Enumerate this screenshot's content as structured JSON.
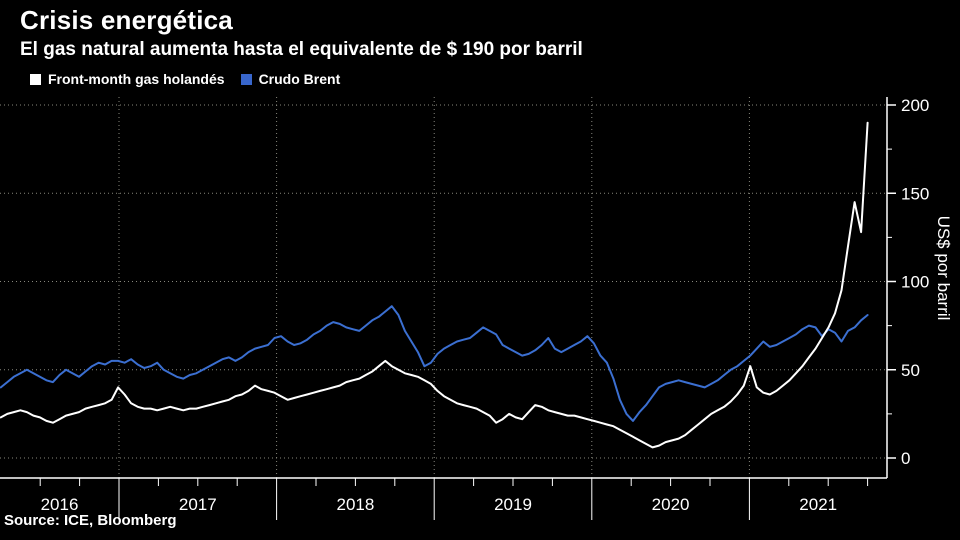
{
  "header": {
    "title": "Crisis energética",
    "subtitle": "El gas natural aumenta hasta el equivalente de $ 190 por barril"
  },
  "legend": {
    "items": [
      {
        "id": "gas",
        "label": "Front-month gas holandés",
        "color": "#ffffff"
      },
      {
        "id": "brent",
        "label": "Crudo Brent",
        "color": "#3866cc"
      }
    ]
  },
  "source": {
    "label": "Source: ICE, Bloomberg"
  },
  "colors": {
    "background": "#000000",
    "text": "#ffffff",
    "grid": "#87877d",
    "axis": "#ffffff",
    "gas_line": "#ffffff",
    "brent_line": "#3b6fd1"
  },
  "chart_data": {
    "type": "line",
    "title": "Crisis energética",
    "subtitle": "El gas natural aumenta hasta el equivalente de $ 190 por barril",
    "xlabel": "",
    "ylabel": "US$ por barril",
    "ylim": [
      0,
      200
    ],
    "yticks": [
      0,
      50,
      100,
      150,
      200
    ],
    "y_minor_step": 25,
    "x_years": [
      2016,
      2017,
      2018,
      2019,
      2020,
      2021
    ],
    "x_minor_step_years": 0.25,
    "x_axis_range": [
      2016.24,
      2021.87
    ],
    "x_start": 2016.25,
    "x_end": 2021.75,
    "x_spacing": "uniform",
    "grid": "dotted",
    "legend_position": "top-left",
    "units": "US$ per barrel",
    "series": [
      {
        "id": "gas",
        "name": "Front-month gas holandés",
        "color": "#ffffff",
        "values": [
          23,
          25,
          26,
          27,
          26,
          24,
          23,
          21,
          20,
          22,
          24,
          25,
          26,
          28,
          29,
          30,
          31,
          33,
          40,
          36,
          31,
          29,
          28,
          28,
          27,
          28,
          29,
          28,
          27,
          28,
          28,
          29,
          30,
          31,
          32,
          33,
          35,
          36,
          38,
          41,
          39,
          38,
          37,
          35,
          33,
          34,
          35,
          36,
          37,
          38,
          39,
          40,
          41,
          43,
          44,
          45,
          47,
          49,
          52,
          55,
          52,
          50,
          48,
          47,
          46,
          44,
          42,
          38,
          35,
          33,
          31,
          30,
          29,
          28,
          26,
          24,
          20,
          22,
          25,
          23,
          22,
          26,
          30,
          29,
          27,
          26,
          25,
          24,
          24,
          23,
          22,
          21,
          20,
          19,
          18,
          16,
          14,
          12,
          10,
          8,
          6,
          7,
          9,
          10,
          11,
          13,
          16,
          19,
          22,
          25,
          27,
          29,
          32,
          36,
          41,
          52,
          40,
          37,
          36,
          38,
          41,
          44,
          48,
          52,
          57,
          62,
          68,
          74,
          82,
          95,
          120,
          145,
          128,
          190
        ]
      },
      {
        "id": "brent",
        "name": "Crudo Brent",
        "color": "#3b6fd1",
        "values": [
          40,
          43,
          46,
          48,
          50,
          48,
          46,
          44,
          43,
          47,
          50,
          48,
          46,
          49,
          52,
          54,
          53,
          55,
          55,
          54,
          56,
          53,
          51,
          52,
          54,
          50,
          48,
          46,
          45,
          47,
          48,
          50,
          52,
          54,
          56,
          57,
          55,
          57,
          60,
          62,
          63,
          64,
          68,
          69,
          66,
          64,
          65,
          67,
          70,
          72,
          75,
          77,
          76,
          74,
          73,
          72,
          75,
          78,
          80,
          83,
          86,
          81,
          72,
          66,
          60,
          52,
          54,
          59,
          62,
          64,
          66,
          67,
          68,
          71,
          74,
          72,
          70,
          64,
          62,
          60,
          58,
          59,
          61,
          64,
          68,
          62,
          60,
          62,
          64,
          66,
          69,
          65,
          58,
          54,
          45,
          33,
          25,
          21,
          26,
          30,
          35,
          40,
          42,
          43,
          44,
          43,
          42,
          41,
          40,
          42,
          44,
          47,
          50,
          52,
          55,
          58,
          62,
          66,
          63,
          64,
          66,
          68,
          70,
          73,
          75,
          74,
          69,
          73,
          71,
          66,
          72,
          74,
          78,
          81
        ]
      }
    ]
  }
}
